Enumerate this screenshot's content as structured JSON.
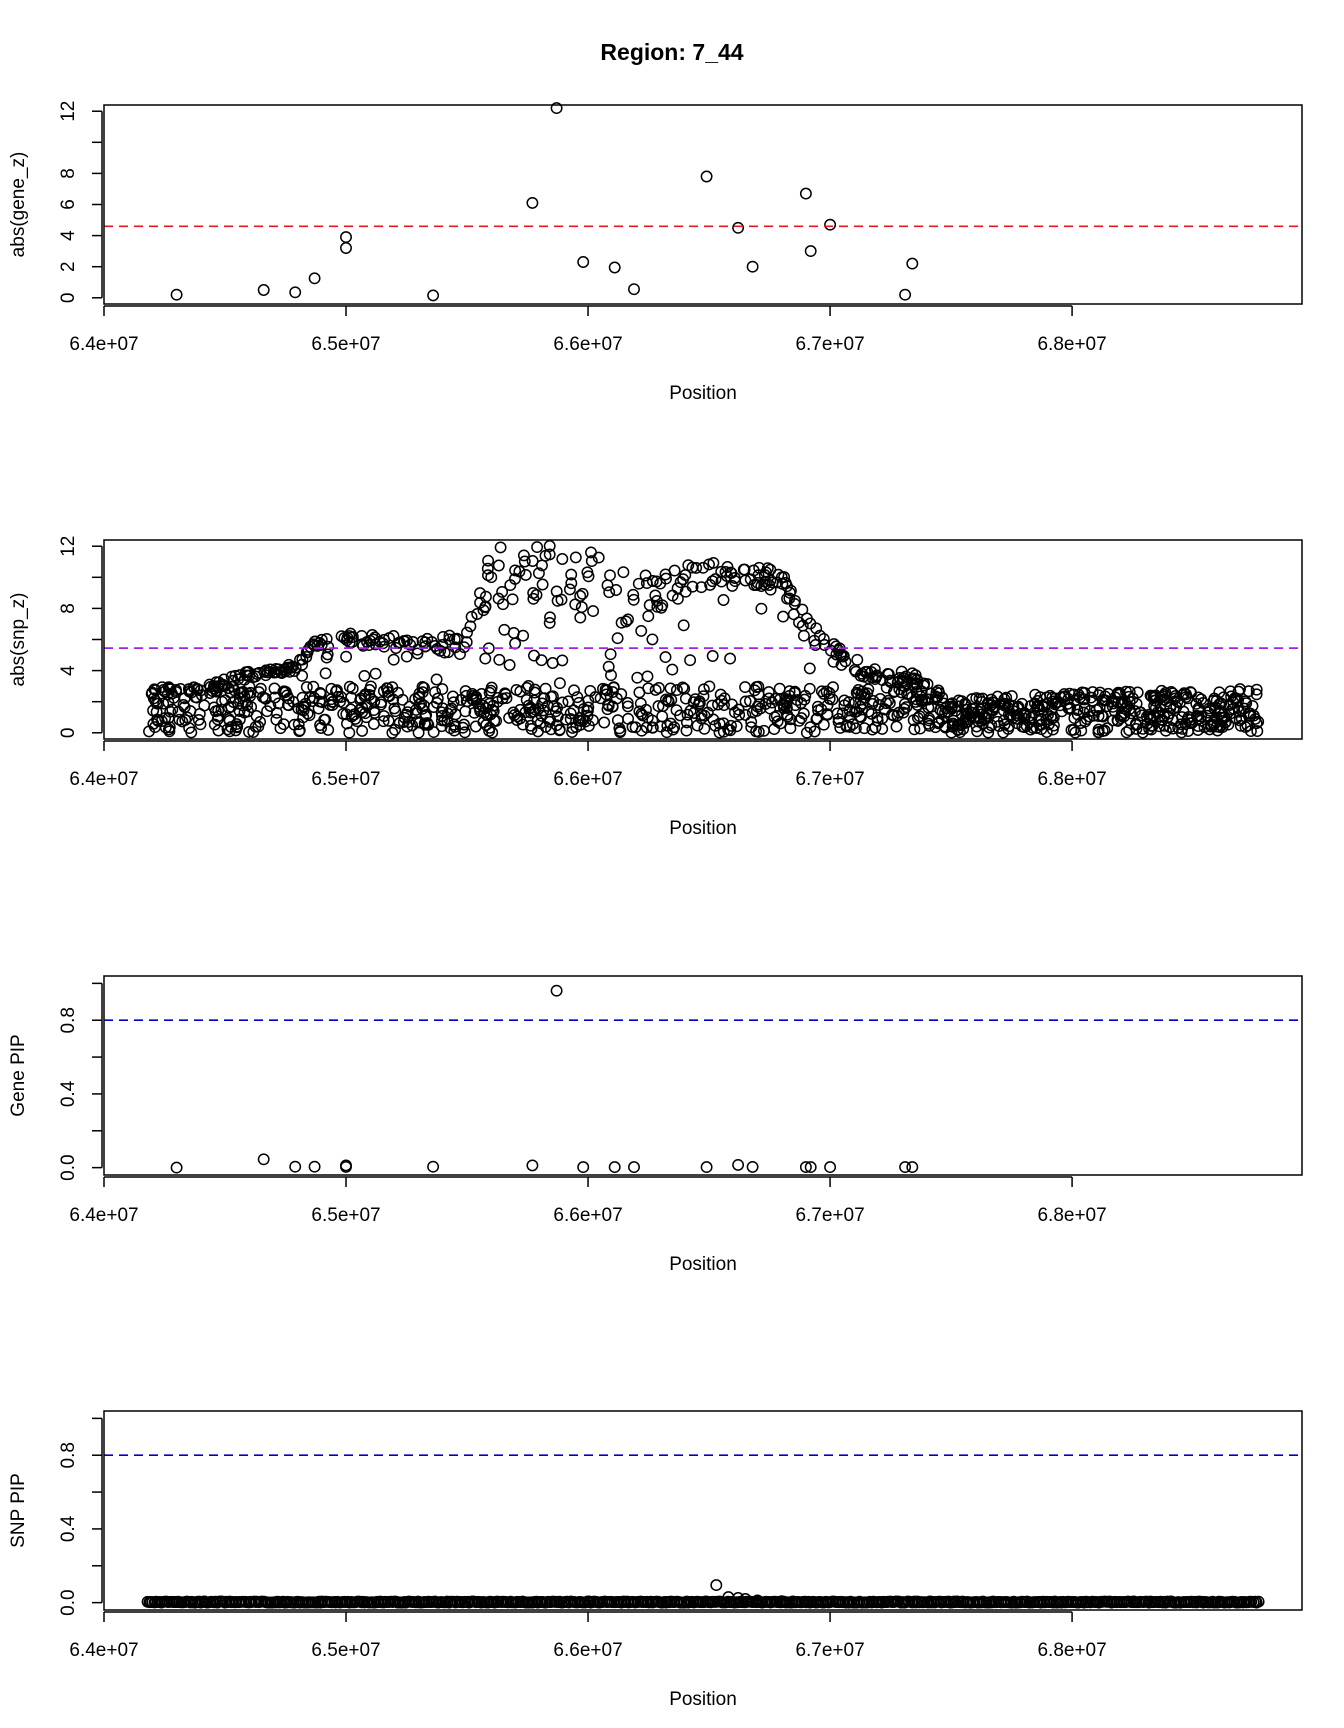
{
  "title": "Region: 7_44",
  "chart_data": [
    {
      "type": "scatter",
      "xlabel": "Position",
      "ylabel": "abs(gene_z)",
      "xlim": [
        64000000,
        68950000
      ],
      "ylim": [
        -0.4,
        12.4
      ],
      "xticks": [
        64000000,
        65000000,
        66000000,
        67000000,
        68000000
      ],
      "xtick_labels": [
        "6.4e+07",
        "6.5e+07",
        "6.6e+07",
        "6.7e+07",
        "6.8e+07"
      ],
      "yticks": [
        0,
        2,
        4,
        6,
        8,
        10,
        12
      ],
      "ytick_labels": [
        "0",
        "2",
        "4",
        "6",
        "8",
        "",
        "12"
      ],
      "threshold": 4.6,
      "threshold_color": "#e31a1c",
      "points": [
        [
          64300000,
          0.2
        ],
        [
          64660000,
          0.5
        ],
        [
          64790000,
          0.35
        ],
        [
          64870000,
          1.25
        ],
        [
          65000000,
          3.9
        ],
        [
          65000000,
          3.2
        ],
        [
          65360000,
          0.15
        ],
        [
          65770000,
          6.1
        ],
        [
          65870000,
          12.2
        ],
        [
          65980000,
          2.3
        ],
        [
          66110000,
          1.95
        ],
        [
          66190000,
          0.55
        ],
        [
          66490000,
          7.8
        ],
        [
          66620000,
          4.5
        ],
        [
          66680000,
          2.0
        ],
        [
          66900000,
          6.7
        ],
        [
          66920000,
          3.0
        ],
        [
          67000000,
          4.7
        ],
        [
          67310000,
          0.2
        ],
        [
          67340000,
          2.2
        ]
      ]
    },
    {
      "type": "scatter",
      "xlabel": "Position",
      "ylabel": "abs(snp_z)",
      "xlim": [
        64000000,
        68950000
      ],
      "ylim": [
        -0.4,
        12.4
      ],
      "xticks": [
        64000000,
        65000000,
        66000000,
        67000000,
        68000000
      ],
      "xtick_labels": [
        "6.4e+07",
        "6.5e+07",
        "6.6e+07",
        "6.7e+07",
        "6.8e+07"
      ],
      "yticks": [
        0,
        2,
        4,
        6,
        8,
        10,
        12
      ],
      "ytick_labels": [
        "0",
        "",
        "4",
        "",
        "8",
        "",
        "12"
      ],
      "threshold": 5.45,
      "threshold_color": "#a020f0",
      "x_range": [
        64180000,
        68770000
      ],
      "profile": [
        [
          64180000,
          2.5,
          3.0
        ],
        [
          64400000,
          2.5,
          3.0
        ],
        [
          64600000,
          3.5,
          4.0
        ],
        [
          64800000,
          4.0,
          4.5
        ],
        [
          64880000,
          5.5,
          6.2
        ],
        [
          65000000,
          5.8,
          6.5
        ],
        [
          65100000,
          5.5,
          6.3
        ],
        [
          65200000,
          5.5,
          6.3
        ],
        [
          65300000,
          5.2,
          6.0
        ],
        [
          65500000,
          5.0,
          6.5
        ],
        [
          65600000,
          8.0,
          12.0
        ],
        [
          65700000,
          8.5,
          12.2
        ],
        [
          65900000,
          8.0,
          12.2
        ],
        [
          66000000,
          7.0,
          12.0
        ],
        [
          66100000,
          8.0,
          10.5
        ],
        [
          66300000,
          8.0,
          10.5
        ],
        [
          66500000,
          9.5,
          11.0
        ],
        [
          66800000,
          9.0,
          10.5
        ],
        [
          66900000,
          6.0,
          7.5
        ],
        [
          67000000,
          4.5,
          6.0
        ],
        [
          67150000,
          3.5,
          4.3
        ],
        [
          67350000,
          3.0,
          3.8
        ],
        [
          67500000,
          1.5,
          2.2
        ],
        [
          67800000,
          1.5,
          2.4
        ],
        [
          68000000,
          2.0,
          2.6
        ],
        [
          68300000,
          2.2,
          2.8
        ],
        [
          68600000,
          1.8,
          2.6
        ],
        [
          68770000,
          2.0,
          3.0
        ]
      ]
    },
    {
      "type": "scatter",
      "xlabel": "Position",
      "ylabel": "Gene PIP",
      "xlim": [
        64000000,
        68950000
      ],
      "ylim": [
        -0.04,
        1.04
      ],
      "xticks": [
        64000000,
        65000000,
        66000000,
        67000000,
        68000000
      ],
      "xtick_labels": [
        "6.4e+07",
        "6.5e+07",
        "6.6e+07",
        "6.7e+07",
        "6.8e+07"
      ],
      "yticks": [
        0,
        0.2,
        0.4,
        0.6,
        0.8,
        1.0
      ],
      "ytick_labels": [
        "0.0",
        "",
        "0.4",
        "",
        "0.8",
        ""
      ],
      "threshold": 0.8,
      "threshold_color": "#0000cc",
      "points": [
        [
          64300000,
          0.0
        ],
        [
          64660000,
          0.045
        ],
        [
          64790000,
          0.005
        ],
        [
          64870000,
          0.005
        ],
        [
          65000000,
          0.012
        ],
        [
          65000000,
          0.004
        ],
        [
          65360000,
          0.005
        ],
        [
          65770000,
          0.012
        ],
        [
          65870000,
          0.96
        ],
        [
          65980000,
          0.003
        ],
        [
          66110000,
          0.003
        ],
        [
          66190000,
          0.003
        ],
        [
          66490000,
          0.003
        ],
        [
          66620000,
          0.015
        ],
        [
          66680000,
          0.004
        ],
        [
          66900000,
          0.003
        ],
        [
          66920000,
          0.003
        ],
        [
          67000000,
          0.003
        ],
        [
          67310000,
          0.003
        ],
        [
          67340000,
          0.003
        ]
      ]
    },
    {
      "type": "scatter",
      "xlabel": "Position",
      "ylabel": "SNP PIP",
      "xlim": [
        64000000,
        68950000
      ],
      "ylim": [
        -0.04,
        1.04
      ],
      "xticks": [
        64000000,
        65000000,
        66000000,
        67000000,
        68000000
      ],
      "xtick_labels": [
        "6.4e+07",
        "6.5e+07",
        "6.6e+07",
        "6.7e+07",
        "6.8e+07"
      ],
      "yticks": [
        0,
        0.2,
        0.4,
        0.6,
        0.8,
        1.0
      ],
      "ytick_labels": [
        "0.0",
        "",
        "0.4",
        "",
        "0.8",
        ""
      ],
      "threshold": 0.8,
      "threshold_color": "#0000cc",
      "x_range": [
        64180000,
        68770000
      ],
      "points": [
        [
          66530000,
          0.095
        ],
        [
          66580000,
          0.03
        ],
        [
          66620000,
          0.025
        ],
        [
          66650000,
          0.02
        ],
        [
          66700000,
          0.012
        ],
        [
          66800000,
          0.008
        ]
      ]
    }
  ]
}
